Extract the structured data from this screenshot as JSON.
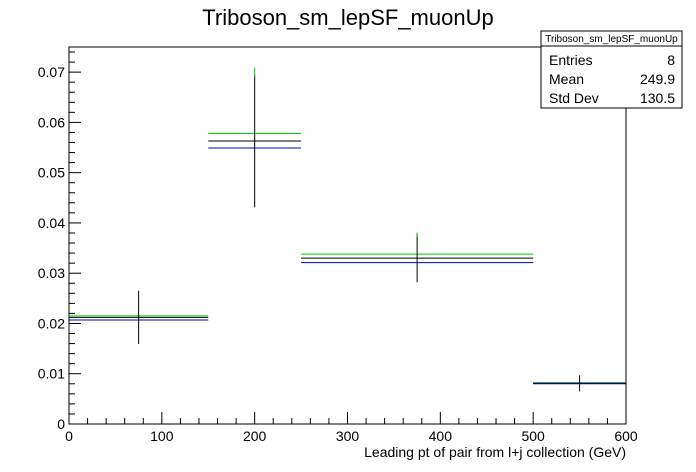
{
  "chart_data": {
    "type": "histogram",
    "title": "Triboson_sm_lepSF_muonUp",
    "xlabel": "Leading pt of pair from l+j collection (GeV)",
    "ylabel": "",
    "xlim": [
      0,
      600
    ],
    "ylim": [
      0,
      0.075
    ],
    "x_ticks": [
      0,
      100,
      200,
      300,
      400,
      500,
      600
    ],
    "x_tick_labels": [
      "0",
      "100",
      "200",
      "300",
      "400",
      "500",
      "600"
    ],
    "y_ticks": [
      0,
      0.01,
      0.02,
      0.03,
      0.04,
      0.05,
      0.06,
      0.07
    ],
    "y_tick_labels": [
      "0",
      "0.01",
      "0.02",
      "0.03",
      "0.04",
      "0.05",
      "0.06",
      "0.07"
    ],
    "bins": [
      {
        "x_low": 0,
        "x_high": 150,
        "x_center": 75
      },
      {
        "x_low": 150,
        "x_high": 250,
        "x_center": 200
      },
      {
        "x_low": 250,
        "x_high": 500,
        "x_center": 375
      },
      {
        "x_low": 500,
        "x_high": 600,
        "x_center": 550
      }
    ],
    "series": [
      {
        "color": "#00cc00",
        "values": [
          0.0215,
          0.0578,
          0.0338,
          0.0082
        ]
      },
      {
        "color": "#000000",
        "values": [
          0.0212,
          0.0563,
          0.033,
          0.0081
        ],
        "errors": [
          0.0053,
          0.0132,
          0.0048,
          0.0016
        ]
      },
      {
        "color": "#0000cc",
        "values": [
          0.0207,
          0.0549,
          0.0321,
          0.008
        ]
      }
    ],
    "stats_box": {
      "header": "Triboson_sm_lepSF_muonUp",
      "rows": [
        {
          "label": "Entries",
          "value": "8"
        },
        {
          "label": "Mean",
          "value": "249.9"
        },
        {
          "label": "Std Dev",
          "value": "130.5"
        }
      ]
    },
    "grid": false,
    "legend": "none"
  }
}
